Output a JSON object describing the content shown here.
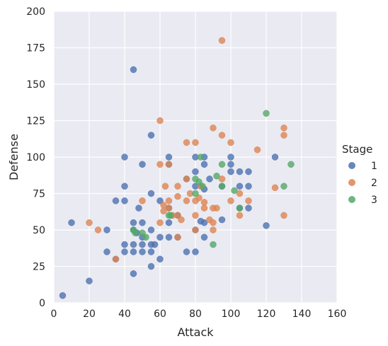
{
  "chart_data": {
    "type": "scatter",
    "xlabel": "Attack",
    "ylabel": "Defense",
    "xlim": [
      0,
      160
    ],
    "ylim": [
      0,
      200
    ],
    "xticks": [
      0,
      20,
      40,
      60,
      80,
      100,
      120,
      140,
      160
    ],
    "yticks": [
      0,
      25,
      50,
      75,
      100,
      125,
      150,
      175,
      200
    ],
    "grid": true,
    "legend": {
      "title": "Stage",
      "placement": "right"
    },
    "series": [
      {
        "name": "1",
        "color": "#4c72b0",
        "points": [
          [
            5,
            5
          ],
          [
            10,
            55
          ],
          [
            20,
            15
          ],
          [
            30,
            50
          ],
          [
            30,
            35
          ],
          [
            35,
            70
          ],
          [
            35,
            30
          ],
          [
            40,
            100
          ],
          [
            40,
            80
          ],
          [
            40,
            70
          ],
          [
            40,
            40
          ],
          [
            40,
            35
          ],
          [
            45,
            160
          ],
          [
            45,
            55
          ],
          [
            45,
            50
          ],
          [
            45,
            40
          ],
          [
            45,
            35
          ],
          [
            45,
            20
          ],
          [
            47,
            48
          ],
          [
            48,
            65
          ],
          [
            50,
            95
          ],
          [
            50,
            55
          ],
          [
            50,
            45
          ],
          [
            50,
            40
          ],
          [
            50,
            35
          ],
          [
            55,
            115
          ],
          [
            55,
            75
          ],
          [
            55,
            50
          ],
          [
            55,
            40
          ],
          [
            55,
            35
          ],
          [
            55,
            25
          ],
          [
            57,
            40
          ],
          [
            60,
            70
          ],
          [
            60,
            45
          ],
          [
            60,
            30
          ],
          [
            65,
            100
          ],
          [
            65,
            95
          ],
          [
            65,
            65
          ],
          [
            65,
            55
          ],
          [
            65,
            45
          ],
          [
            70,
            60
          ],
          [
            70,
            45
          ],
          [
            75,
            85
          ],
          [
            75,
            35
          ],
          [
            80,
            100
          ],
          [
            80,
            90
          ],
          [
            80,
            80
          ],
          [
            80,
            50
          ],
          [
            80,
            35
          ],
          [
            83,
            56
          ],
          [
            85,
            100
          ],
          [
            85,
            95
          ],
          [
            85,
            78
          ],
          [
            85,
            55
          ],
          [
            85,
            45
          ],
          [
            88,
            85
          ],
          [
            95,
            80
          ],
          [
            95,
            57
          ],
          [
            100,
            100
          ],
          [
            100,
            95
          ],
          [
            100,
            90
          ],
          [
            105,
            90
          ],
          [
            105,
            80
          ],
          [
            105,
            65
          ],
          [
            110,
            90
          ],
          [
            110,
            80
          ],
          [
            110,
            65
          ],
          [
            120,
            53
          ],
          [
            125,
            100
          ]
        ]
      },
      {
        "name": "2",
        "color": "#dd8452",
        "points": [
          [
            20,
            55
          ],
          [
            25,
            50
          ],
          [
            35,
            30
          ],
          [
            50,
            70
          ],
          [
            60,
            125
          ],
          [
            60,
            95
          ],
          [
            60,
            55
          ],
          [
            62,
            67
          ],
          [
            62,
            63
          ],
          [
            63,
            80
          ],
          [
            65,
            95
          ],
          [
            65,
            70
          ],
          [
            65,
            65
          ],
          [
            67,
            60
          ],
          [
            70,
            80
          ],
          [
            70,
            73
          ],
          [
            70,
            60
          ],
          [
            70,
            45
          ],
          [
            72,
            57
          ],
          [
            75,
            110
          ],
          [
            75,
            85
          ],
          [
            75,
            70
          ],
          [
            77,
            75
          ],
          [
            80,
            110
          ],
          [
            80,
            70
          ],
          [
            80,
            60
          ],
          [
            80,
            50
          ],
          [
            82,
            72
          ],
          [
            83,
            80
          ],
          [
            85,
            69
          ],
          [
            85,
            65
          ],
          [
            88,
            57
          ],
          [
            90,
            120
          ],
          [
            90,
            65
          ],
          [
            90,
            55
          ],
          [
            90,
            50
          ],
          [
            92,
            65
          ],
          [
            95,
            180
          ],
          [
            95,
            115
          ],
          [
            95,
            85
          ],
          [
            100,
            110
          ],
          [
            100,
            70
          ],
          [
            105,
            75
          ],
          [
            105,
            60
          ],
          [
            110,
            70
          ],
          [
            115,
            105
          ],
          [
            125,
            79
          ],
          [
            130,
            120
          ],
          [
            130,
            115
          ],
          [
            130,
            60
          ]
        ]
      },
      {
        "name": "3",
        "color": "#55a868",
        "points": [
          [
            45,
            50
          ],
          [
            46,
            48
          ],
          [
            50,
            48
          ],
          [
            52,
            45
          ],
          [
            65,
            60
          ],
          [
            66,
            60
          ],
          [
            80,
            85
          ],
          [
            80,
            75
          ],
          [
            82,
            83
          ],
          [
            83,
            100
          ],
          [
            84,
            80
          ],
          [
            90,
            40
          ],
          [
            92,
            87
          ],
          [
            95,
            95
          ],
          [
            95,
            80
          ],
          [
            102,
            77
          ],
          [
            105,
            65
          ],
          [
            120,
            130
          ],
          [
            130,
            80
          ],
          [
            134,
            95
          ]
        ]
      }
    ]
  }
}
